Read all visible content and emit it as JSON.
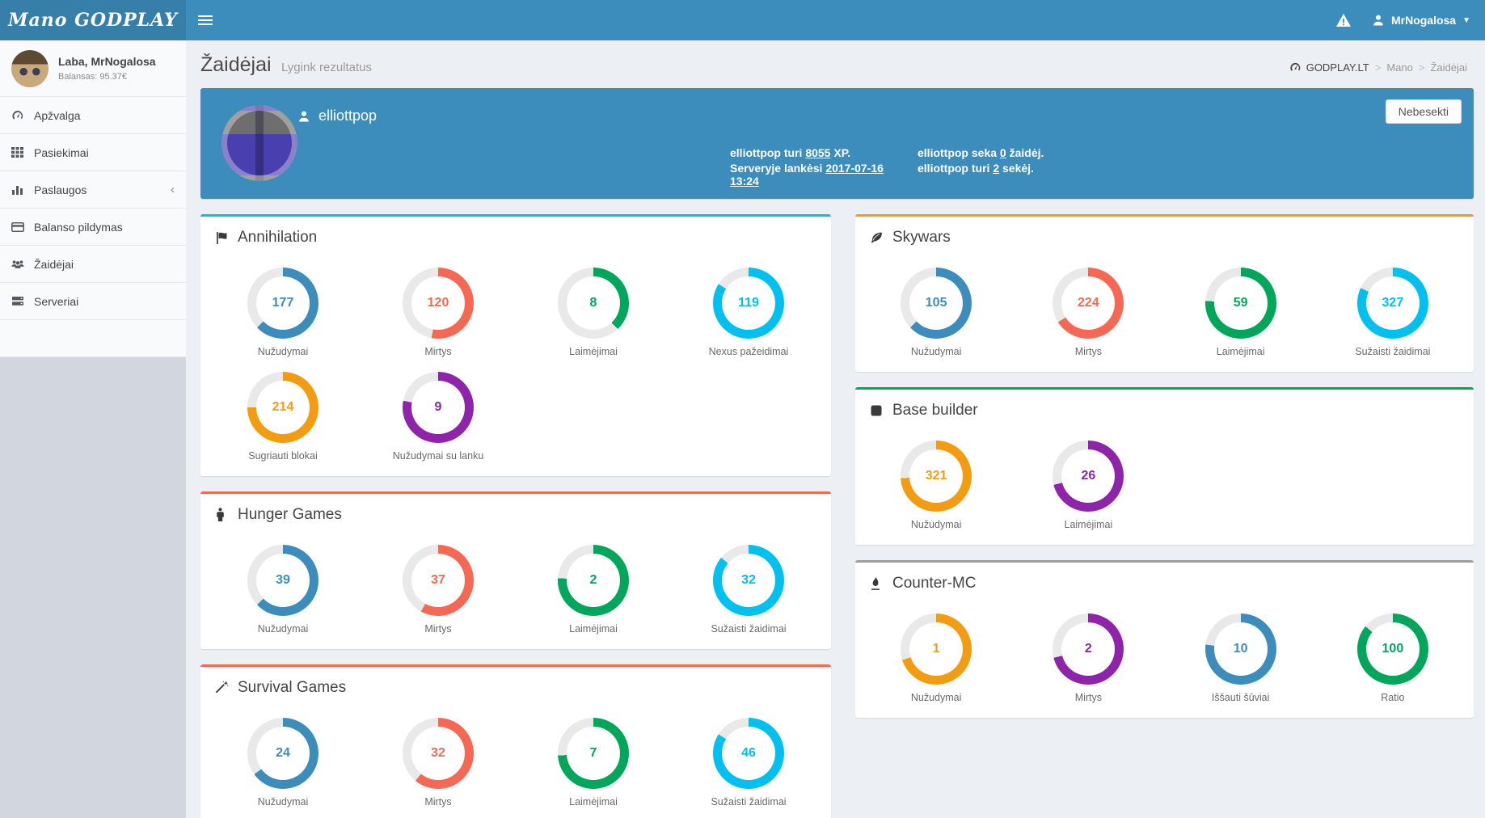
{
  "navbar": {
    "logo": "Mano GODPLAY",
    "user_name": "MrNogalosa"
  },
  "sidebar": {
    "greeting": "Laba, MrNogalosa",
    "balance": "Balansas: 95.37€",
    "items": [
      {
        "label": "Apžvalga",
        "icon": "tachometer"
      },
      {
        "label": "Pasiekimai",
        "icon": "grid"
      },
      {
        "label": "Paslaugos",
        "icon": "bar-chart",
        "chevron": "‹"
      },
      {
        "label": "Balanso pildymas",
        "icon": "credit-card"
      },
      {
        "label": "Žaidėjai",
        "icon": "users"
      },
      {
        "label": "Serveriai",
        "icon": "server"
      }
    ]
  },
  "content_header": {
    "title": "Žaidėjai",
    "subtitle": "Lygink rezultatus",
    "breadcrumb": {
      "root": "GODPLAY.LT",
      "mid": "Mano",
      "current": "Žaidėjai",
      "sep": ">"
    }
  },
  "profile": {
    "username": "elliottpop",
    "unfollow_button": "Nebesekti",
    "stats": [
      {
        "pre": "elliottpop turi ",
        "val": "8055",
        "post": " XP."
      },
      {
        "pre": "elliottpop seka ",
        "val": "0",
        "post": " žaidėj."
      },
      {
        "pre": "Serveryje lankėsi ",
        "val": "2017-07-16 13:24",
        "post": ""
      },
      {
        "pre": "elliottpop turi ",
        "val": "2",
        "post": " sekėj."
      }
    ]
  },
  "colors": {
    "navbar": "#3c8dbc",
    "logo_bg": "#367fa9",
    "profile_box": "#3c8dbc",
    "blue": "#3c8dbc",
    "red": "#f56954",
    "green": "#00a65a",
    "cyan": "#00c0ef",
    "orange": "#f39c12",
    "purple": "#8e24aa",
    "track": "#e9e9e9"
  },
  "chart_data": {
    "type": "donut-grid",
    "panels": [
      {
        "title": "Annihilation",
        "icon": "flag",
        "border_color": "#00c0ef",
        "column": "left",
        "stats": [
          {
            "label": "Nužudymai",
            "value": 177,
            "percent": 63,
            "color": "#3c8dbc"
          },
          {
            "label": "Mirtys",
            "value": 120,
            "percent": 53,
            "color": "#f56954"
          },
          {
            "label": "Laimėjimai",
            "value": 8,
            "percent": 38,
            "color": "#00a65a"
          },
          {
            "label": "Nexus pažeidimai",
            "value": 119,
            "percent": 84,
            "color": "#00c0ef"
          },
          {
            "label": "Sugriauti blokai",
            "value": 214,
            "percent": 75,
            "color": "#f39c12"
          },
          {
            "label": "Nužudymai su lanku",
            "value": 9,
            "percent": 78,
            "color": "#8e24aa"
          }
        ]
      },
      {
        "title": "Hunger Games",
        "icon": "person",
        "border_color": "#f56954",
        "column": "left",
        "stats": [
          {
            "label": "Nužudymai",
            "value": 39,
            "percent": 63,
            "color": "#3c8dbc"
          },
          {
            "label": "Mirtys",
            "value": 37,
            "percent": 58,
            "color": "#f56954"
          },
          {
            "label": "Laimėjimai",
            "value": 2,
            "percent": 76,
            "color": "#00a65a"
          },
          {
            "label": "Sužaisti žaidimai",
            "value": 32,
            "percent": 86,
            "color": "#00c0ef"
          }
        ]
      },
      {
        "title": "Survival Games",
        "icon": "wand",
        "border_color": "#f56954",
        "column": "left",
        "stats": [
          {
            "label": "Nužudymai",
            "value": 24,
            "percent": 65,
            "color": "#3c8dbc"
          },
          {
            "label": "Mirtys",
            "value": 32,
            "percent": 61,
            "color": "#f56954"
          },
          {
            "label": "Laimėjimai",
            "value": 7,
            "percent": 74,
            "color": "#00a65a"
          },
          {
            "label": "Sužaisti žaidimai",
            "value": 46,
            "percent": 84,
            "color": "#00c0ef"
          }
        ]
      },
      {
        "title": "",
        "icon": "",
        "border_color": "#00a65a",
        "column": "left",
        "cutoff": true,
        "stats": []
      },
      {
        "title": "Skywars",
        "icon": "leaf",
        "border_color": "#f39c12",
        "column": "right",
        "stats": [
          {
            "label": "Nužudymai",
            "value": 105,
            "percent": 63,
            "color": "#3c8dbc"
          },
          {
            "label": "Mirtys",
            "value": 224,
            "percent": 66,
            "color": "#f56954"
          },
          {
            "label": "Laimėjimai",
            "value": 59,
            "percent": 76,
            "color": "#00a65a"
          },
          {
            "label": "Sužaisti žaidimai",
            "value": 327,
            "percent": 82,
            "color": "#00c0ef"
          }
        ]
      },
      {
        "title": "Base builder",
        "icon": "square",
        "border_color": "#00a65a",
        "column": "right",
        "stats": [
          {
            "label": "Nužudymai",
            "value": 321,
            "percent": 74,
            "color": "#f39c12"
          },
          {
            "label": "Laimėjimai",
            "value": 26,
            "percent": 71,
            "color": "#8e24aa"
          }
        ]
      },
      {
        "title": "Counter-MC",
        "icon": "flame",
        "border_color": "#9d9d9d",
        "column": "right",
        "stats": [
          {
            "label": "Nužudymai",
            "value": 1,
            "percent": 70,
            "color": "#f39c12"
          },
          {
            "label": "Mirtys",
            "value": 2,
            "percent": 71,
            "color": "#8e24aa"
          },
          {
            "label": "Iššauti šūviai",
            "value": 10,
            "percent": 77,
            "color": "#3c8dbc"
          },
          {
            "label": "Ratio",
            "value": 100,
            "percent": 86,
            "color": "#00a65a"
          }
        ]
      }
    ]
  }
}
